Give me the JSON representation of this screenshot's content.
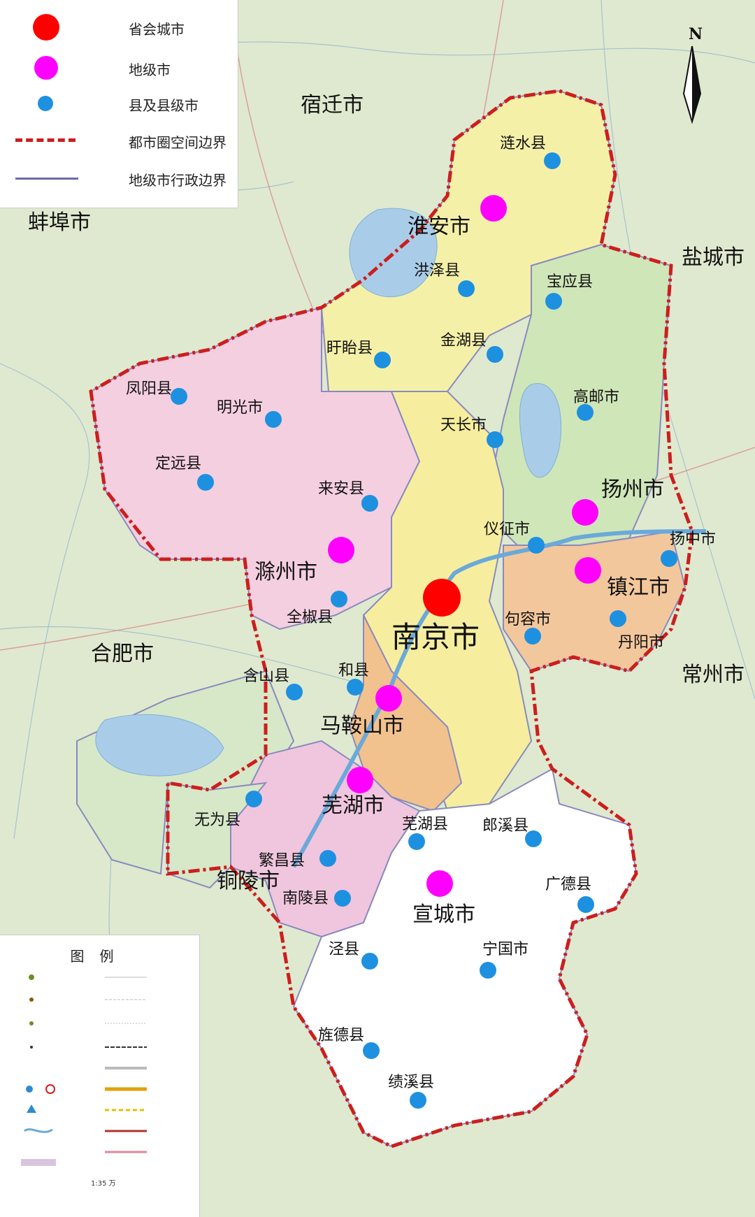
{
  "legend": {
    "items": [
      {
        "label": "省会城市",
        "symbol": "red-dot-icon"
      },
      {
        "label": "地级市",
        "symbol": "magenta-dot-icon"
      },
      {
        "label": "县及县级市",
        "symbol": "blue-dot-icon"
      },
      {
        "label": "都市圈空间边界",
        "symbol": "red-dashed-boundary-icon"
      },
      {
        "label": "地级市行政边界",
        "symbol": "blue-line-boundary-icon"
      }
    ]
  },
  "compass": {
    "label": "N"
  },
  "key": {
    "title": "图例",
    "scale": "1:35 万"
  },
  "outside_regions": [
    "宿迁市",
    "蚌埠市",
    "盐城市",
    "合肥市",
    "常州市",
    "铜陵市"
  ],
  "capital": {
    "name": "南京市"
  },
  "prefectures": [
    "淮安市",
    "扬州市",
    "滁州市",
    "镇江市",
    "马鞍山市",
    "芜湖市",
    "宣城市"
  ],
  "counties": [
    "涟水县",
    "洪泽县",
    "宝应县",
    "盱眙县",
    "金湖县",
    "凤阳县",
    "明光市",
    "高邮市",
    "天长市",
    "定远县",
    "来安县",
    "仪征市",
    "扬中市",
    "全椒县",
    "句容市",
    "丹阳市",
    "含山县",
    "和县",
    "无为县",
    "芜湖县",
    "郎溪县",
    "繁昌县",
    "广德县",
    "南陵县",
    "泾县",
    "宁国市",
    "旌德县",
    "绩溪县"
  ],
  "colors": {
    "capital": "#ff0000",
    "prefecture": "#ff00ff",
    "county": "#1e90e0",
    "metro_boundary": "#cc1e1e",
    "admin_boundary": "#6a6aa8",
    "fill_huaian": "#f5f0a8",
    "fill_chuzhou": "#f4cfe0",
    "fill_nanjing": "#f6ee9e",
    "fill_yangzhou": "#cfe6b8",
    "fill_zhenjiang": "#f3c79c",
    "fill_maanshan": "#f2c28e",
    "fill_wuhu": "#f0c6de",
    "fill_xuancheng": "#ffffff",
    "fill_hefei": "#d6e8c8"
  }
}
